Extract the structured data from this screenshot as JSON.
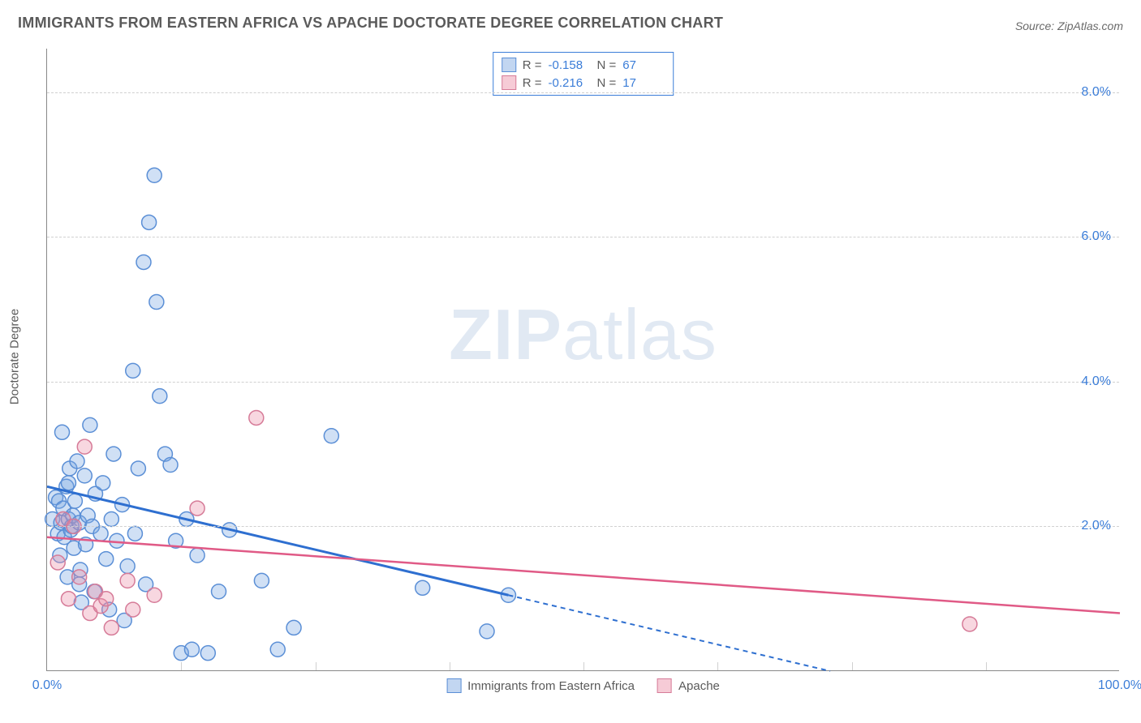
{
  "title": "IMMIGRANTS FROM EASTERN AFRICA VS APACHE DOCTORATE DEGREE CORRELATION CHART",
  "source_label": "Source: ZipAtlas.com",
  "watermark": {
    "zip": "ZIP",
    "atlas": "atlas"
  },
  "chart": {
    "type": "scatter",
    "background_color": "#ffffff",
    "grid_color": "#d0d0d0",
    "axis_color": "#888888",
    "tick_label_color": "#3b7dd8",
    "tick_fontsize": 16,
    "axis_title_color": "#5a5a5a",
    "y_axis_title": "Doctorate Degree",
    "xlim": [
      0,
      100
    ],
    "ylim": [
      0,
      8.6
    ],
    "x_ticks": [
      {
        "pos": 0,
        "label": "0.0%"
      },
      {
        "pos": 100,
        "label": "100.0%"
      }
    ],
    "x_minor_ticks": [
      12.5,
      25,
      37.5,
      50,
      62.5,
      75,
      87.5
    ],
    "y_ticks": [
      {
        "pos": 2.0,
        "label": "2.0%"
      },
      {
        "pos": 4.0,
        "label": "4.0%"
      },
      {
        "pos": 6.0,
        "label": "6.0%"
      },
      {
        "pos": 8.0,
        "label": "8.0%"
      }
    ],
    "marker_radius": 9,
    "marker_stroke_width": 1.5,
    "series": [
      {
        "id": "eastern_africa",
        "label": "Immigrants from Eastern Africa",
        "color_fill": "rgba(120,165,225,0.35)",
        "color_stroke": "#5b8fd6",
        "trend": {
          "solid": {
            "x1": 0,
            "y1": 2.55,
            "x2": 43,
            "y2": 1.05
          },
          "dashed": {
            "x1": 43,
            "y1": 1.05,
            "x2": 73,
            "y2": 0.0
          },
          "stroke": "#2e6fd0",
          "width": 3,
          "dash": "6,5"
        },
        "points": [
          [
            0.5,
            2.1
          ],
          [
            0.8,
            2.4
          ],
          [
            1.0,
            1.9
          ],
          [
            1.1,
            2.35
          ],
          [
            1.2,
            1.6
          ],
          [
            1.3,
            2.05
          ],
          [
            1.4,
            3.3
          ],
          [
            1.5,
            2.25
          ],
          [
            1.6,
            1.85
          ],
          [
            1.8,
            2.55
          ],
          [
            1.9,
            1.3
          ],
          [
            2.0,
            2.1
          ],
          [
            2.1,
            2.8
          ],
          [
            2.2,
            1.95
          ],
          [
            2.3,
            2.0
          ],
          [
            2.4,
            2.15
          ],
          [
            2.5,
            1.7
          ],
          [
            2.6,
            2.35
          ],
          [
            2.8,
            2.9
          ],
          [
            3.0,
            2.05
          ],
          [
            3.1,
            1.4
          ],
          [
            3.2,
            0.95
          ],
          [
            3.5,
            2.7
          ],
          [
            3.6,
            1.75
          ],
          [
            3.8,
            2.15
          ],
          [
            4.0,
            3.4
          ],
          [
            4.2,
            2.0
          ],
          [
            4.4,
            1.1
          ],
          [
            4.5,
            2.45
          ],
          [
            5.0,
            1.9
          ],
          [
            5.2,
            2.6
          ],
          [
            5.5,
            1.55
          ],
          [
            5.8,
            0.85
          ],
          [
            6.0,
            2.1
          ],
          [
            6.2,
            3.0
          ],
          [
            6.5,
            1.8
          ],
          [
            7.0,
            2.3
          ],
          [
            7.2,
            0.7
          ],
          [
            7.5,
            1.45
          ],
          [
            8.0,
            4.15
          ],
          [
            8.2,
            1.9
          ],
          [
            8.5,
            2.8
          ],
          [
            9.0,
            5.65
          ],
          [
            9.2,
            1.2
          ],
          [
            9.5,
            6.2
          ],
          [
            10.0,
            6.85
          ],
          [
            10.2,
            5.1
          ],
          [
            10.5,
            3.8
          ],
          [
            11.0,
            3.0
          ],
          [
            11.5,
            2.85
          ],
          [
            12.0,
            1.8
          ],
          [
            12.5,
            0.25
          ],
          [
            13.0,
            2.1
          ],
          [
            13.5,
            0.3
          ],
          [
            14.0,
            1.6
          ],
          [
            15.0,
            0.25
          ],
          [
            16.0,
            1.1
          ],
          [
            17.0,
            1.95
          ],
          [
            20.0,
            1.25
          ],
          [
            21.5,
            0.3
          ],
          [
            23.0,
            0.6
          ],
          [
            26.5,
            3.25
          ],
          [
            35.0,
            1.15
          ],
          [
            41.0,
            0.55
          ],
          [
            43.0,
            1.05
          ],
          [
            2.0,
            2.6
          ],
          [
            3.0,
            1.2
          ]
        ]
      },
      {
        "id": "apache",
        "label": "Apache",
        "color_fill": "rgba(235,140,165,0.35)",
        "color_stroke": "#d67b98",
        "trend": {
          "solid": {
            "x1": 0,
            "y1": 1.85,
            "x2": 100,
            "y2": 0.8
          },
          "dashed": null,
          "stroke": "#e05a86",
          "width": 2.5,
          "dash": null
        },
        "points": [
          [
            1.0,
            1.5
          ],
          [
            1.5,
            2.1
          ],
          [
            2.0,
            1.0
          ],
          [
            2.5,
            2.0
          ],
          [
            3.0,
            1.3
          ],
          [
            3.5,
            3.1
          ],
          [
            4.0,
            0.8
          ],
          [
            4.5,
            1.1
          ],
          [
            5.0,
            0.9
          ],
          [
            5.5,
            1.0
          ],
          [
            6.0,
            0.6
          ],
          [
            7.5,
            1.25
          ],
          [
            8.0,
            0.85
          ],
          [
            10.0,
            1.05
          ],
          [
            14.0,
            2.25
          ],
          [
            19.5,
            3.5
          ],
          [
            86.0,
            0.65
          ]
        ]
      }
    ],
    "legend_top": {
      "border_color": "#3b7dd8",
      "rows": [
        {
          "swatch": "blue",
          "r_label": "R =",
          "r": "-0.158",
          "n_label": "N =",
          "n": "67"
        },
        {
          "swatch": "pink",
          "r_label": "R =",
          "r": "-0.216",
          "n_label": "N =",
          "n": "17"
        }
      ]
    },
    "legend_bottom": [
      {
        "swatch": "blue",
        "label": "Immigrants from Eastern Africa"
      },
      {
        "swatch": "pink",
        "label": "Apache"
      }
    ]
  }
}
